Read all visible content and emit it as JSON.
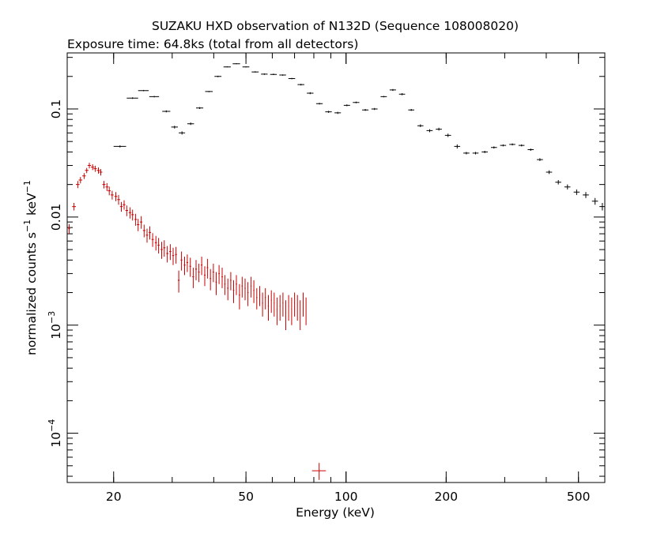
{
  "chart_data": {
    "type": "scatter",
    "title": "SUZAKU HXD observation of N132D (Sequence 108008020)",
    "subtitle": "Exposure time: 64.8ks (total from all detectors)",
    "xlabel": "Energy (keV)",
    "ylabel_parts": [
      "normalized counts s",
      "−1",
      " keV",
      "−1"
    ],
    "x_scale": "log",
    "y_scale": "log",
    "xlim": [
      14.5,
      600
    ],
    "ylim": [
      3.5e-05,
      0.33
    ],
    "x_ticks": [
      {
        "value": 20,
        "label": "20"
      },
      {
        "value": 50,
        "label": "50"
      },
      {
        "value": 100,
        "label": "100"
      },
      {
        "value": 200,
        "label": "200"
      },
      {
        "value": 500,
        "label": "500"
      }
    ],
    "y_ticks": [
      {
        "value": 0.0001,
        "base": "10",
        "exp": "−4"
      },
      {
        "value": 0.001,
        "base": "10",
        "exp": "−3"
      },
      {
        "value": 0.01,
        "label": "0.01"
      },
      {
        "value": 0.1,
        "label": "0.1"
      }
    ],
    "grid": false,
    "series": [
      {
        "color": "#000000",
        "points": [
          [
            20.9,
            0.045,
            0.9,
            0.001
          ],
          [
            22.8,
            0.126,
            0.9,
            0.002
          ],
          [
            24.6,
            0.148,
            0.9,
            0.002
          ],
          [
            26.5,
            0.13,
            0.9,
            0.002
          ],
          [
            28.8,
            0.095,
            0.8,
            0.002
          ],
          [
            30.5,
            0.068,
            0.7,
            0.002
          ],
          [
            32.1,
            0.06,
            0.7,
            0.002
          ],
          [
            34.1,
            0.073,
            0.8,
            0.002
          ],
          [
            36.3,
            0.102,
            0.9,
            0.002
          ],
          [
            38.7,
            0.145,
            1.0,
            0.002
          ],
          [
            41.2,
            0.2,
            1.0,
            0.003
          ],
          [
            43.9,
            0.245,
            1.1,
            0.003
          ],
          [
            46.8,
            0.262,
            1.2,
            0.003
          ],
          [
            50.0,
            0.245,
            1.2,
            0.003
          ],
          [
            53.3,
            0.22,
            1.3,
            0.003
          ],
          [
            56.8,
            0.21,
            1.3,
            0.003
          ],
          [
            60.5,
            0.209,
            1.4,
            0.003
          ],
          [
            64.5,
            0.206,
            1.5,
            0.003
          ],
          [
            68.7,
            0.191,
            1.6,
            0.003
          ],
          [
            73.2,
            0.168,
            1.7,
            0.003
          ],
          [
            78.0,
            0.14,
            1.8,
            0.003
          ],
          [
            83.2,
            0.112,
            1.9,
            0.002
          ],
          [
            88.6,
            0.094,
            2.0,
            0.002
          ],
          [
            94.4,
            0.092,
            2.1,
            0.002
          ],
          [
            100.6,
            0.108,
            2.2,
            0.002
          ],
          [
            107.2,
            0.115,
            2.4,
            0.002
          ],
          [
            114.3,
            0.098,
            2.5,
            0.002
          ],
          [
            121.8,
            0.1,
            2.6,
            0.002
          ],
          [
            129.8,
            0.13,
            2.8,
            0.002
          ],
          [
            138.3,
            0.15,
            3.0,
            0.003
          ],
          [
            147.4,
            0.137,
            3.1,
            0.003
          ],
          [
            157.1,
            0.098,
            3.3,
            0.002
          ],
          [
            167.4,
            0.07,
            3.5,
            0.002
          ],
          [
            178.4,
            0.063,
            3.8,
            0.002
          ],
          [
            190.1,
            0.065,
            4.0,
            0.002
          ],
          [
            202.6,
            0.057,
            4.3,
            0.002
          ],
          [
            215.9,
            0.045,
            4.5,
            0.002
          ],
          [
            230.1,
            0.039,
            4.8,
            0.001
          ],
          [
            245.2,
            0.039,
            5.1,
            0.001
          ],
          [
            261.3,
            0.04,
            5.5,
            0.001
          ],
          [
            278.5,
            0.044,
            5.8,
            0.001
          ],
          [
            296.8,
            0.046,
            6.2,
            0.001
          ],
          [
            316.3,
            0.047,
            6.6,
            0.001
          ],
          [
            337.1,
            0.046,
            7.0,
            0.001
          ],
          [
            359.2,
            0.042,
            7.5,
            0.001
          ],
          [
            382.8,
            0.034,
            8.0,
            0.001
          ],
          [
            408.0,
            0.026,
            8.5,
            0.001
          ],
          [
            434.8,
            0.021,
            9.0,
            0.001
          ],
          [
            463.3,
            0.019,
            9.6,
            0.001
          ],
          [
            493.8,
            0.017,
            10.3,
            0.001
          ],
          [
            526.2,
            0.016,
            10.9,
            0.001
          ],
          [
            560.8,
            0.014,
            11.6,
            0.001
          ],
          [
            590.0,
            0.0125,
            12.0,
            0.001
          ]
        ]
      },
      {
        "color": "#cc0000",
        "points": [
          [
            14.7,
            0.0078,
            0.1,
            0.0008
          ],
          [
            15.2,
            0.0125,
            0.2,
            0.001
          ],
          [
            15.6,
            0.02,
            0.2,
            0.0015
          ],
          [
            15.9,
            0.022,
            0.2,
            0.0015
          ],
          [
            16.3,
            0.024,
            0.2,
            0.0015
          ],
          [
            16.6,
            0.027,
            0.2,
            0.0015
          ],
          [
            16.9,
            0.03,
            0.2,
            0.0018
          ],
          [
            17.3,
            0.029,
            0.2,
            0.0018
          ],
          [
            17.6,
            0.028,
            0.2,
            0.0018
          ],
          [
            18.0,
            0.027,
            0.2,
            0.0018
          ],
          [
            18.3,
            0.026,
            0.2,
            0.0018
          ],
          [
            18.7,
            0.02,
            0.2,
            0.0016
          ],
          [
            19.1,
            0.019,
            0.2,
            0.0016
          ],
          [
            19.4,
            0.0175,
            0.2,
            0.0016
          ],
          [
            19.8,
            0.016,
            0.2,
            0.0015
          ],
          [
            20.3,
            0.0155,
            0.2,
            0.0015
          ],
          [
            20.7,
            0.0145,
            0.2,
            0.0015
          ],
          [
            21.1,
            0.0125,
            0.2,
            0.0013
          ],
          [
            21.5,
            0.013,
            0.2,
            0.0013
          ],
          [
            21.9,
            0.0115,
            0.2,
            0.0013
          ],
          [
            22.4,
            0.011,
            0.2,
            0.0013
          ],
          [
            22.8,
            0.0105,
            0.2,
            0.0012
          ],
          [
            23.3,
            0.0095,
            0.2,
            0.0012
          ],
          [
            23.7,
            0.0085,
            0.2,
            0.0011
          ],
          [
            24.2,
            0.009,
            0.2,
            0.0012
          ],
          [
            24.7,
            0.0075,
            0.2,
            0.001
          ],
          [
            25.2,
            0.0068,
            0.2,
            0.001
          ],
          [
            25.7,
            0.0072,
            0.2,
            0.001
          ],
          [
            26.2,
            0.0062,
            0.2,
            0.0009
          ],
          [
            26.8,
            0.0058,
            0.2,
            0.0009
          ],
          [
            27.3,
            0.0055,
            0.2,
            0.0009
          ],
          [
            27.9,
            0.005,
            0.2,
            0.0009
          ],
          [
            28.4,
            0.0052,
            0.2,
            0.0009
          ],
          [
            29.0,
            0.0046,
            0.2,
            0.0008
          ],
          [
            29.6,
            0.0048,
            0.2,
            0.0008
          ],
          [
            30.2,
            0.0044,
            0.2,
            0.0008
          ],
          [
            30.8,
            0.0045,
            0.2,
            0.0008
          ],
          [
            31.4,
            0.0026,
            0.2,
            0.0006
          ],
          [
            32.0,
            0.004,
            0.2,
            0.0008
          ],
          [
            32.7,
            0.0036,
            0.2,
            0.0007
          ],
          [
            33.3,
            0.0038,
            0.2,
            0.0007
          ],
          [
            34.0,
            0.0035,
            0.2,
            0.0007
          ],
          [
            34.7,
            0.0028,
            0.2,
            0.0006
          ],
          [
            35.4,
            0.0033,
            0.2,
            0.0007
          ],
          [
            36.1,
            0.0031,
            0.2,
            0.0006
          ],
          [
            36.8,
            0.0036,
            0.2,
            0.0007
          ],
          [
            37.6,
            0.0029,
            0.2,
            0.0006
          ],
          [
            38.3,
            0.0034,
            0.2,
            0.0007
          ],
          [
            39.1,
            0.0027,
            0.2,
            0.0006
          ],
          [
            39.9,
            0.0031,
            0.2,
            0.0006
          ],
          [
            40.7,
            0.0025,
            0.2,
            0.0006
          ],
          [
            41.5,
            0.003,
            0.2,
            0.0006
          ],
          [
            42.4,
            0.0028,
            0.2,
            0.0006
          ],
          [
            43.2,
            0.0024,
            0.2,
            0.0005
          ],
          [
            44.1,
            0.0022,
            0.2,
            0.0005
          ],
          [
            45.0,
            0.0026,
            0.2,
            0.0005
          ],
          [
            45.9,
            0.0021,
            0.2,
            0.0005
          ],
          [
            46.8,
            0.0024,
            0.2,
            0.0005
          ],
          [
            47.8,
            0.0019,
            0.2,
            0.0005
          ],
          [
            48.7,
            0.0023,
            0.2,
            0.0005
          ],
          [
            49.7,
            0.0022,
            0.2,
            0.0005
          ],
          [
            50.7,
            0.002,
            0.2,
            0.0005
          ],
          [
            51.8,
            0.0023,
            0.2,
            0.0005
          ],
          [
            52.8,
            0.0021,
            0.2,
            0.0005
          ],
          [
            53.9,
            0.0018,
            0.2,
            0.0004
          ],
          [
            55.0,
            0.0019,
            0.2,
            0.0004
          ],
          [
            56.1,
            0.0016,
            0.2,
            0.0004
          ],
          [
            57.2,
            0.0018,
            0.2,
            0.0004
          ],
          [
            58.4,
            0.0015,
            0.2,
            0.0004
          ],
          [
            59.6,
            0.0017,
            0.2,
            0.0004
          ],
          [
            60.8,
            0.0016,
            0.2,
            0.0004
          ],
          [
            62.0,
            0.0014,
            0.2,
            0.0004
          ],
          [
            63.3,
            0.0015,
            0.2,
            0.0004
          ],
          [
            64.6,
            0.0016,
            0.2,
            0.0004
          ],
          [
            65.9,
            0.0013,
            0.2,
            0.0004
          ],
          [
            67.2,
            0.0015,
            0.2,
            0.0004
          ],
          [
            68.6,
            0.0014,
            0.2,
            0.0004
          ],
          [
            70.0,
            0.0016,
            0.2,
            0.0004
          ],
          [
            71.4,
            0.0015,
            0.2,
            0.0004
          ],
          [
            72.8,
            0.0013,
            0.2,
            0.0004
          ],
          [
            74.3,
            0.0016,
            0.2,
            0.0004
          ],
          [
            75.8,
            0.0014,
            0.2,
            0.0004
          ],
          [
            83.0,
            4.5e-05,
            4.0,
            8e-06
          ]
        ]
      }
    ]
  }
}
